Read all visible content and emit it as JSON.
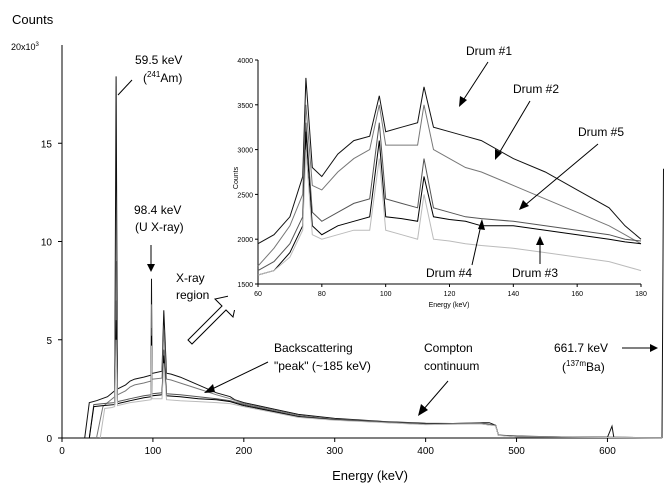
{
  "chart_data": {
    "type": "line",
    "ylabel": "Counts",
    "y_multiplier": "20x10",
    "y_multiplier_exp": "3",
    "xlabel": "Energy (keV)",
    "xlim": [
      0,
      660
    ],
    "ylim": [
      0,
      20000
    ],
    "x_ticks": [
      0,
      100,
      200,
      300,
      400,
      500,
      600
    ],
    "y_ticks": [
      0,
      5,
      10,
      15
    ],
    "annotations": {
      "am_energy": "59.5 keV",
      "am_open": "(",
      "am_mass": "241",
      "am_name": "Am)",
      "u_energy": "98.4 keV",
      "u_name": "(U X-ray)",
      "xray_1": "X-ray",
      "xray_2": "region",
      "back_1": "Backscattering",
      "back_2": "\"peak\" (~185 keV)",
      "compton_1": "Compton",
      "compton_2": "continuum",
      "cs_energy": "661.7 keV",
      "ba_open": "(",
      "ba_mass": "137m",
      "ba_name": "Ba)"
    },
    "inset": {
      "xlabel": "Energy (keV)",
      "ylabel": "Counts",
      "xlim": [
        60,
        180
      ],
      "ylim": [
        1500,
        4000
      ],
      "x_ticks": [
        60,
        80,
        100,
        120,
        140,
        160,
        180
      ],
      "y_ticks": [
        1500,
        2000,
        2500,
        3000,
        3500,
        4000
      ],
      "series": [
        {
          "name": "Drum #1",
          "color": "#111111",
          "x": [
            60,
            65,
            70,
            74,
            75,
            77,
            80,
            85,
            90,
            95,
            98,
            100,
            105,
            110,
            112,
            115,
            120,
            125,
            130,
            140,
            150,
            160,
            170,
            175,
            180
          ],
          "y": [
            1950,
            2050,
            2250,
            2700,
            3800,
            2800,
            2700,
            2950,
            3100,
            3150,
            3600,
            3200,
            3250,
            3300,
            3700,
            3250,
            3200,
            3150,
            3100,
            2900,
            2750,
            2550,
            2350,
            2150,
            2000
          ]
        },
        {
          "name": "Drum #2",
          "color": "#777777",
          "x": [
            60,
            65,
            70,
            74,
            75,
            77,
            80,
            85,
            90,
            95,
            98,
            100,
            105,
            110,
            112,
            115,
            120,
            125,
            130,
            140,
            150,
            160,
            170,
            175,
            180
          ],
          "y": [
            1700,
            1900,
            2150,
            2500,
            3500,
            2600,
            2550,
            2750,
            2900,
            3000,
            3500,
            3050,
            3050,
            3050,
            3500,
            3000,
            2900,
            2800,
            2750,
            2600,
            2450,
            2300,
            2150,
            2050,
            1950
          ]
        },
        {
          "name": "Drum #5",
          "color": "#555555",
          "x": [
            60,
            65,
            70,
            74,
            75,
            77,
            80,
            85,
            90,
            95,
            98,
            100,
            105,
            110,
            112,
            115,
            120,
            125,
            130,
            140,
            150,
            160,
            170,
            175,
            180
          ],
          "y": [
            1650,
            1750,
            1950,
            2250,
            3300,
            2300,
            2200,
            2300,
            2400,
            2450,
            3300,
            2450,
            2400,
            2350,
            2900,
            2350,
            2300,
            2250,
            2230,
            2200,
            2150,
            2100,
            2050,
            2000,
            1980
          ]
        },
        {
          "name": "Drum #4",
          "color": "#000000",
          "x": [
            60,
            65,
            70,
            74,
            75,
            77,
            80,
            85,
            90,
            95,
            98,
            100,
            105,
            110,
            112,
            115,
            120,
            125,
            130,
            140,
            150,
            160,
            170,
            175,
            180
          ],
          "y": [
            1600,
            1650,
            1850,
            2150,
            3200,
            2150,
            2050,
            2150,
            2200,
            2250,
            3100,
            2250,
            2230,
            2200,
            2700,
            2250,
            2220,
            2200,
            2150,
            2150,
            2100,
            2050,
            2000,
            1970,
            1950
          ]
        },
        {
          "name": "Drum #3",
          "color": "#bbbbbb",
          "x": [
            60,
            65,
            70,
            74,
            75,
            77,
            80,
            85,
            90,
            95,
            98,
            100,
            105,
            110,
            112,
            115,
            120,
            125,
            130,
            140,
            150,
            160,
            170,
            175,
            180
          ],
          "y": [
            1600,
            1650,
            1800,
            2100,
            3000,
            2050,
            2000,
            2050,
            2100,
            2100,
            2900,
            2100,
            2050,
            2000,
            2500,
            2000,
            1980,
            1950,
            1930,
            1900,
            1850,
            1800,
            1750,
            1700,
            1650
          ]
        }
      ]
    },
    "series": [
      {
        "name": "Drum #1",
        "color": "#111111",
        "x": [
          25,
          30,
          38,
          50,
          58,
          59.5,
          61,
          70,
          75,
          80,
          90,
          98,
          98.4,
          99,
          100,
          110,
          112,
          115,
          120,
          130,
          150,
          170,
          185,
          190,
          200,
          230,
          260,
          300,
          350,
          400,
          430,
          460,
          470,
          477,
          480,
          500,
          550,
          600,
          605,
          607,
          620,
          650,
          660,
          661.7
        ],
        "y": [
          0,
          1800,
          1900,
          2100,
          2400,
          18400,
          2500,
          2700,
          2900,
          3000,
          3100,
          3200,
          8100,
          3300,
          3300,
          3400,
          6500,
          3300,
          3250,
          3100,
          2700,
          2300,
          2100,
          1950,
          1800,
          1500,
          1200,
          1000,
          850,
          750,
          740,
          780,
          780,
          650,
          150,
          100,
          50,
          40,
          600,
          40,
          30,
          20,
          20,
          13700
        ]
      },
      {
        "name": "Drum #2",
        "color": "#777777",
        "x": [
          38,
          45,
          50,
          58,
          59.5,
          61,
          70,
          75,
          80,
          90,
          98,
          98.4,
          99,
          100,
          110,
          112,
          115,
          120,
          130,
          150,
          170,
          185,
          200,
          260,
          300,
          400,
          460,
          477,
          480,
          500,
          600,
          660
        ],
        "y": [
          0,
          1600,
          1800,
          2100,
          9000,
          2200,
          2400,
          2600,
          2700,
          2800,
          2900,
          6800,
          3000,
          3000,
          3050,
          5500,
          3000,
          2950,
          2800,
          2500,
          2200,
          2000,
          1750,
          1150,
          950,
          720,
          760,
          650,
          150,
          80,
          30,
          15
        ]
      },
      {
        "name": "Drum #5",
        "color": "#555555",
        "x": [
          30,
          35,
          45,
          58,
          59.5,
          61,
          75,
          90,
          98,
          98.4,
          99,
          110,
          112,
          115,
          130,
          150,
          170,
          185,
          200,
          260,
          300,
          400,
          460,
          477,
          480,
          500,
          600,
          660
        ],
        "y": [
          0,
          1700,
          1750,
          1800,
          7000,
          1850,
          2000,
          2150,
          2200,
          5600,
          2250,
          2300,
          4500,
          2250,
          2200,
          2100,
          2000,
          1900,
          1700,
          1100,
          930,
          700,
          740,
          640,
          140,
          70,
          30,
          15
        ]
      },
      {
        "name": "Drum #4",
        "color": "#000000",
        "x": [
          30,
          35,
          45,
          58,
          59.5,
          61,
          75,
          90,
          98,
          98.4,
          99,
          110,
          112,
          115,
          130,
          150,
          170,
          185,
          200,
          260,
          300,
          400,
          460,
          477,
          480,
          500,
          600,
          660
        ],
        "y": [
          0,
          1600,
          1650,
          1700,
          6000,
          1750,
          1900,
          2050,
          2100,
          5200,
          2150,
          2200,
          4200,
          2150,
          2100,
          2000,
          1950,
          1850,
          1650,
          1080,
          920,
          690,
          730,
          630,
          140,
          70,
          30,
          15
        ]
      },
      {
        "name": "Drum #3",
        "color": "#bbbbbb",
        "x": [
          42,
          47,
          55,
          58,
          59.5,
          61,
          75,
          90,
          98,
          98.4,
          99,
          110,
          112,
          115,
          130,
          150,
          170,
          185,
          200,
          260,
          300,
          400,
          460,
          477,
          480,
          500,
          600,
          660
        ],
        "y": [
          0,
          1500,
          1550,
          1600,
          5000,
          1650,
          1800,
          1900,
          1950,
          4700,
          2000,
          2000,
          3800,
          1950,
          1900,
          1850,
          1800,
          1750,
          1600,
          1050,
          900,
          680,
          720,
          620,
          130,
          60,
          25,
          10
        ]
      }
    ]
  }
}
